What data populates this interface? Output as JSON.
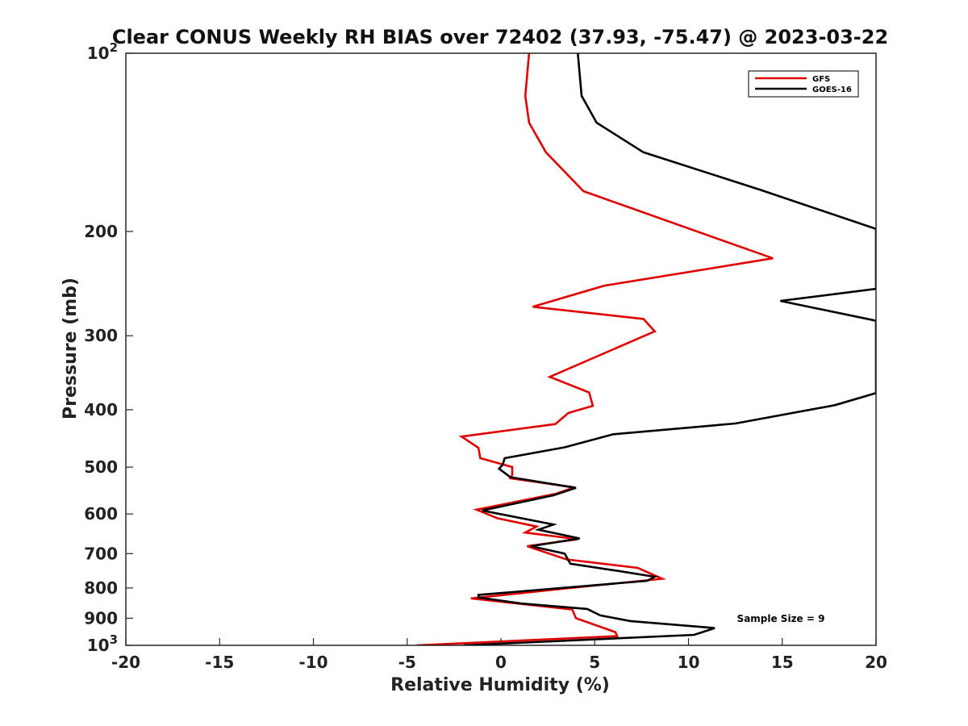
{
  "chart_data": {
    "type": "line",
    "title": "Clear CONUS Weekly RH BIAS over 72402 (37.93, -75.47) @ 2023-03-22",
    "xlabel": "Relative Humidity (%)",
    "ylabel": "Pressure (mb)",
    "xlim": [
      -20,
      20
    ],
    "ylim": [
      100,
      1000
    ],
    "yscale": "log",
    "y_reversed": true,
    "grid": false,
    "x_ticks": [
      -20,
      -15,
      -10,
      -5,
      0,
      5,
      10,
      15,
      20
    ],
    "x_tick_labels": [
      "-20",
      "-15",
      "-10",
      "-5",
      "0",
      "5",
      "10",
      "15",
      "20"
    ],
    "y_ticks": [
      {
        "value": 100,
        "base": "10",
        "exp": "2",
        "label": ""
      },
      {
        "value": 200,
        "label": "200"
      },
      {
        "value": 300,
        "label": "300"
      },
      {
        "value": 400,
        "label": "400"
      },
      {
        "value": 500,
        "label": "500"
      },
      {
        "value": 600,
        "label": "600"
      },
      {
        "value": 700,
        "label": "700"
      },
      {
        "value": 800,
        "label": "800"
      },
      {
        "value": 900,
        "label": "900"
      },
      {
        "value": 1000,
        "base": "10",
        "exp": "3",
        "label": ""
      }
    ],
    "legend_position": "top-right",
    "annotation": "Sample Size = 9",
    "series": [
      {
        "name": "GFS",
        "color": "#e00000",
        "x": [
          1.5,
          1.3,
          1.5,
          2.4,
          4.4,
          14.5,
          5.5,
          1.7,
          7.6,
          8.2,
          2.6,
          4.7,
          4.9,
          3.6,
          2.9,
          -2.1,
          -1.2,
          -1.1,
          0.6,
          0.6,
          0.5,
          3.9,
          2.9,
          -1.3,
          -0.2,
          1.9,
          1.3,
          4.1,
          1.4,
          3.5,
          7.3,
          8.6,
          3.5,
          -1.6,
          3.8,
          4.0,
          6.1,
          6.2,
          -4.5
        ],
        "y": [
          100,
          118,
          131,
          147,
          171,
          222,
          247,
          268,
          281,
          295,
          352,
          374,
          394,
          405,
          423,
          444,
          464,
          483,
          500,
          515,
          522,
          541,
          555,
          590,
          610,
          630,
          645,
          662,
          680,
          716,
          740,
          772,
          801,
          833,
          870,
          900,
          950,
          965,
          1000
        ]
      },
      {
        "name": "GOES-16",
        "color": "#000000",
        "x": [
          4.1,
          4.3,
          5.1,
          7.6,
          13.8,
          20,
          20,
          14.9,
          20,
          20,
          17.8,
          12.5,
          6.0,
          3.4,
          0.2,
          0.1,
          -0.1,
          0.5,
          4.0,
          2.8,
          -1.0,
          2.8,
          2.0,
          4.2,
          1.6,
          3.4,
          3.7,
          6.4,
          8.2,
          7.8,
          -1.2,
          -1.2,
          1.1,
          4.6,
          5.3,
          6.9,
          11.4,
          10.3,
          -2.0
        ],
        "y": [
          100,
          118,
          131,
          147,
          170,
          198,
          250,
          262,
          283,
          375,
          393,
          422,
          440,
          463,
          483,
          495,
          503,
          520,
          542,
          558,
          592,
          625,
          638,
          660,
          680,
          700,
          728,
          750,
          766,
          778,
          822,
          830,
          850,
          868,
          890,
          910,
          935,
          960,
          1000
        ]
      }
    ]
  }
}
